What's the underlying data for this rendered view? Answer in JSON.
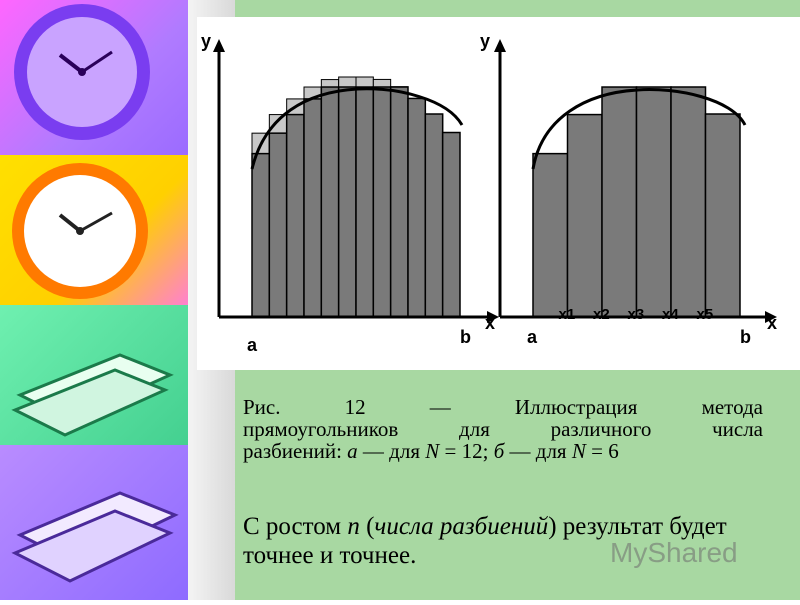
{
  "figure": {
    "left": {
      "y_axis": "y",
      "x_axis": "x",
      "a_label": "a",
      "b_label": "b",
      "rectangles": 12
    },
    "right": {
      "y_axis": "y",
      "x_axis": "x",
      "a_label": "a",
      "b_label": "b",
      "rectangles": 6,
      "tick_labels": [
        "x1",
        "x2",
        "x3",
        "x4",
        "x5"
      ]
    }
  },
  "caption": {
    "line1": "Рис. 12 — Иллюстрация метода",
    "line2": "прямоугольников для различного числа",
    "line3_a": "разбиений: ",
    "line3_b": "а",
    "line3_c": " — для ",
    "line3_d": "N",
    "line3_e": " = 12; ",
    "line3_f": "б",
    "line3_g": " — для ",
    "line3_h": "N",
    "line3_i": " = 6"
  },
  "note": {
    "t1": "С ростом ",
    "t2": "n",
    "t3": " (",
    "t4": "числа разбиений",
    "t5": ") результат будет точнее и точнее."
  },
  "watermark": "MyShared",
  "colors": {
    "slide_background": "#a8d8a2",
    "bar_dark": "#7a7a7a",
    "bar_light": "#c8c8c8"
  }
}
